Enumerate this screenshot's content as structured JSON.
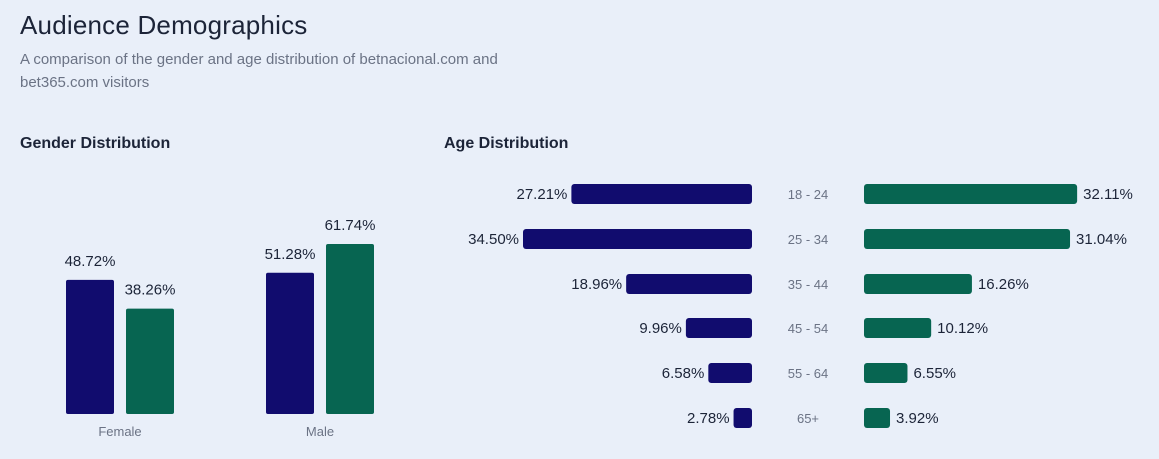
{
  "header": {
    "title": "Audience Demographics",
    "subtitle": "A comparison of the gender and age distribution of betnacional.com and bet365.com visitors"
  },
  "colors": {
    "series_a": "#110c6e",
    "series_b": "#076551"
  },
  "chart_data": [
    {
      "type": "bar",
      "title": "Gender Distribution",
      "categories": [
        "Female",
        "Male"
      ],
      "series": [
        {
          "values": [
            48.72,
            51.28
          ],
          "labels": [
            "48.72%",
            "51.28%"
          ]
        },
        {
          "values": [
            38.26,
            61.74
          ],
          "labels": [
            "38.26%",
            "61.74%"
          ]
        }
      ],
      "ylim": [
        0,
        70
      ]
    },
    {
      "type": "bar",
      "orientation": "horizontal-butterfly",
      "title": "Age Distribution",
      "categories": [
        "18 - 24",
        "25 - 34",
        "35 - 44",
        "45 - 54",
        "55 - 64",
        "65+"
      ],
      "series": [
        {
          "values": [
            27.21,
            34.5,
            18.96,
            9.96,
            6.58,
            2.78
          ],
          "labels": [
            "27.21%",
            "34.50%",
            "18.96%",
            "9.96%",
            "6.58%",
            "2.78%"
          ]
        },
        {
          "values": [
            32.11,
            31.04,
            16.26,
            10.12,
            6.55,
            3.92
          ],
          "labels": [
            "32.11%",
            "31.04%",
            "16.26%",
            "10.12%",
            "6.55%",
            "3.92%"
          ]
        }
      ],
      "xlim": [
        0,
        34.5
      ]
    }
  ]
}
